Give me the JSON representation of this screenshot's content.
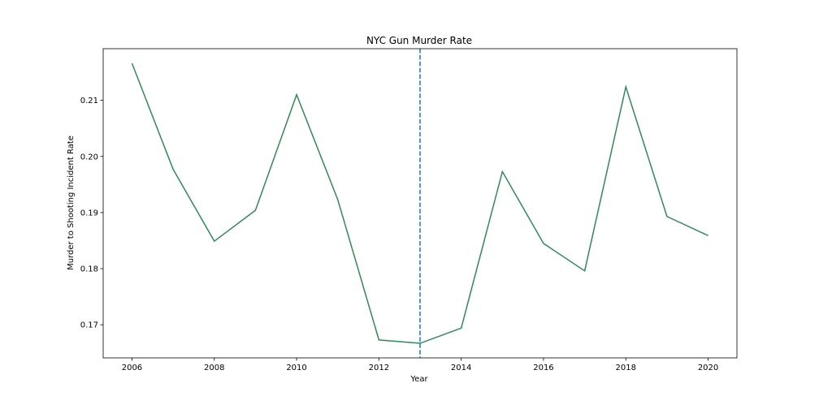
{
  "chart_data": {
    "type": "line",
    "title": "NYC Gun Murder Rate",
    "xlabel": "Year",
    "ylabel": "Murder to Shooting Incident Rate",
    "x": [
      2006,
      2007,
      2008,
      2009,
      2010,
      2011,
      2012,
      2013,
      2014,
      2015,
      2016,
      2017,
      2018,
      2019,
      2020
    ],
    "series": [
      {
        "values": [
          0.2166,
          0.1977,
          0.1849,
          0.1904,
          0.211,
          0.1923,
          0.1673,
          0.1667,
          0.1694,
          0.1973,
          0.1845,
          0.1796,
          0.2124,
          0.1893,
          0.1859
        ],
        "color": "#2e8b57"
      }
    ],
    "vline": {
      "x": 2013,
      "color": "#1f77b4",
      "style": "dashed"
    },
    "xlim": [
      2005.3,
      2020.7
    ],
    "ylim": [
      0.1641,
      0.2192
    ],
    "xticks": [
      2006,
      2008,
      2010,
      2012,
      2014,
      2016,
      2018,
      2020
    ],
    "yticks": [
      0.17,
      0.18,
      0.19,
      0.2,
      0.21
    ],
    "ytick_labels": [
      "0.17",
      "0.18",
      "0.19",
      "0.20",
      "0.21"
    ],
    "grid": false,
    "legend": false
  }
}
